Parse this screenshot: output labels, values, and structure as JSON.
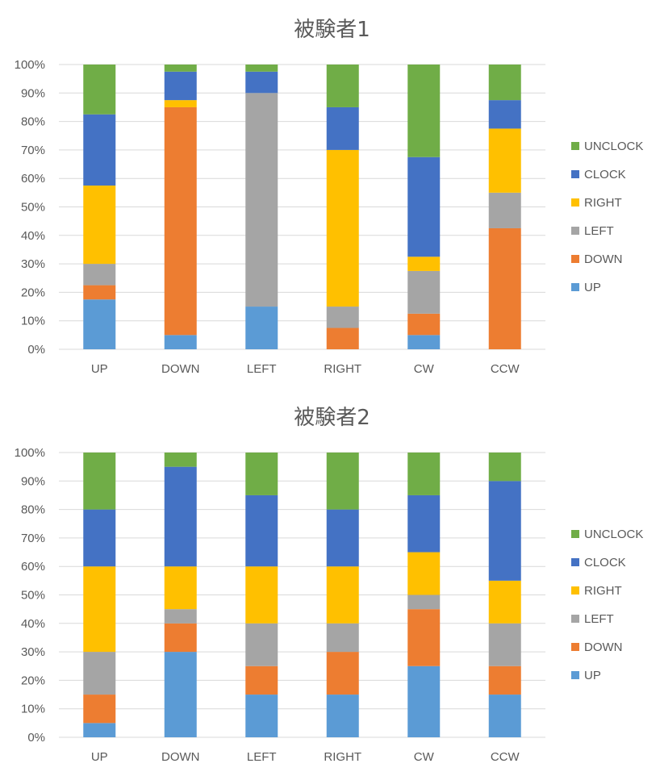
{
  "chart_data": [
    {
      "type": "bar",
      "stacked": "percent",
      "title": "被験者1",
      "categories": [
        "UP",
        "DOWN",
        "LEFT",
        "RIGHT",
        "CW",
        "CCW"
      ],
      "series": [
        {
          "name": "UP",
          "color": "#5B9BD5",
          "values": [
            17.5,
            5,
            15,
            0,
            5,
            0
          ]
        },
        {
          "name": "DOWN",
          "color": "#ED7D31",
          "values": [
            5,
            80,
            0,
            7.5,
            7.5,
            42.5
          ]
        },
        {
          "name": "LEFT",
          "color": "#A5A5A5",
          "values": [
            7.5,
            0,
            75,
            7.5,
            15,
            12.5
          ]
        },
        {
          "name": "RIGHT",
          "color": "#FFC000",
          "values": [
            27.5,
            2.5,
            0,
            55,
            5,
            22.5
          ]
        },
        {
          "name": "CLOCK",
          "color": "#4472C4",
          "values": [
            25,
            10,
            7.5,
            15,
            35,
            10
          ]
        },
        {
          "name": "UNCLOCK",
          "color": "#70AD47",
          "values": [
            17.5,
            2.5,
            2.5,
            15,
            32.5,
            12.5
          ]
        }
      ],
      "yticks": [
        "0%",
        "10%",
        "20%",
        "30%",
        "40%",
        "50%",
        "60%",
        "70%",
        "80%",
        "90%",
        "100%"
      ],
      "ylim": [
        0,
        100
      ],
      "grid": true,
      "legend_position": "right",
      "legend_order": [
        "UNCLOCK",
        "CLOCK",
        "RIGHT",
        "LEFT",
        "DOWN",
        "UP"
      ]
    },
    {
      "type": "bar",
      "stacked": "percent",
      "title": "被験者2",
      "categories": [
        "UP",
        "DOWN",
        "LEFT",
        "RIGHT",
        "CW",
        "CCW"
      ],
      "series": [
        {
          "name": "UP",
          "color": "#5B9BD5",
          "values": [
            5,
            30,
            15,
            15,
            25,
            15
          ]
        },
        {
          "name": "DOWN",
          "color": "#ED7D31",
          "values": [
            10,
            10,
            10,
            15,
            20,
            10
          ]
        },
        {
          "name": "LEFT",
          "color": "#A5A5A5",
          "values": [
            15,
            5,
            15,
            10,
            5,
            15
          ]
        },
        {
          "name": "RIGHT",
          "color": "#FFC000",
          "values": [
            30,
            15,
            20,
            20,
            15,
            15
          ]
        },
        {
          "name": "CLOCK",
          "color": "#4472C4",
          "values": [
            20,
            35,
            25,
            20,
            20,
            35
          ]
        },
        {
          "name": "UNCLOCK",
          "color": "#70AD47",
          "values": [
            20,
            5,
            15,
            20,
            15,
            10
          ]
        }
      ],
      "yticks": [
        "0%",
        "10%",
        "20%",
        "30%",
        "40%",
        "50%",
        "60%",
        "70%",
        "80%",
        "90%",
        "100%"
      ],
      "ylim": [
        0,
        100
      ],
      "grid": true,
      "legend_position": "right",
      "legend_order": [
        "UNCLOCK",
        "CLOCK",
        "RIGHT",
        "LEFT",
        "DOWN",
        "UP"
      ]
    }
  ]
}
